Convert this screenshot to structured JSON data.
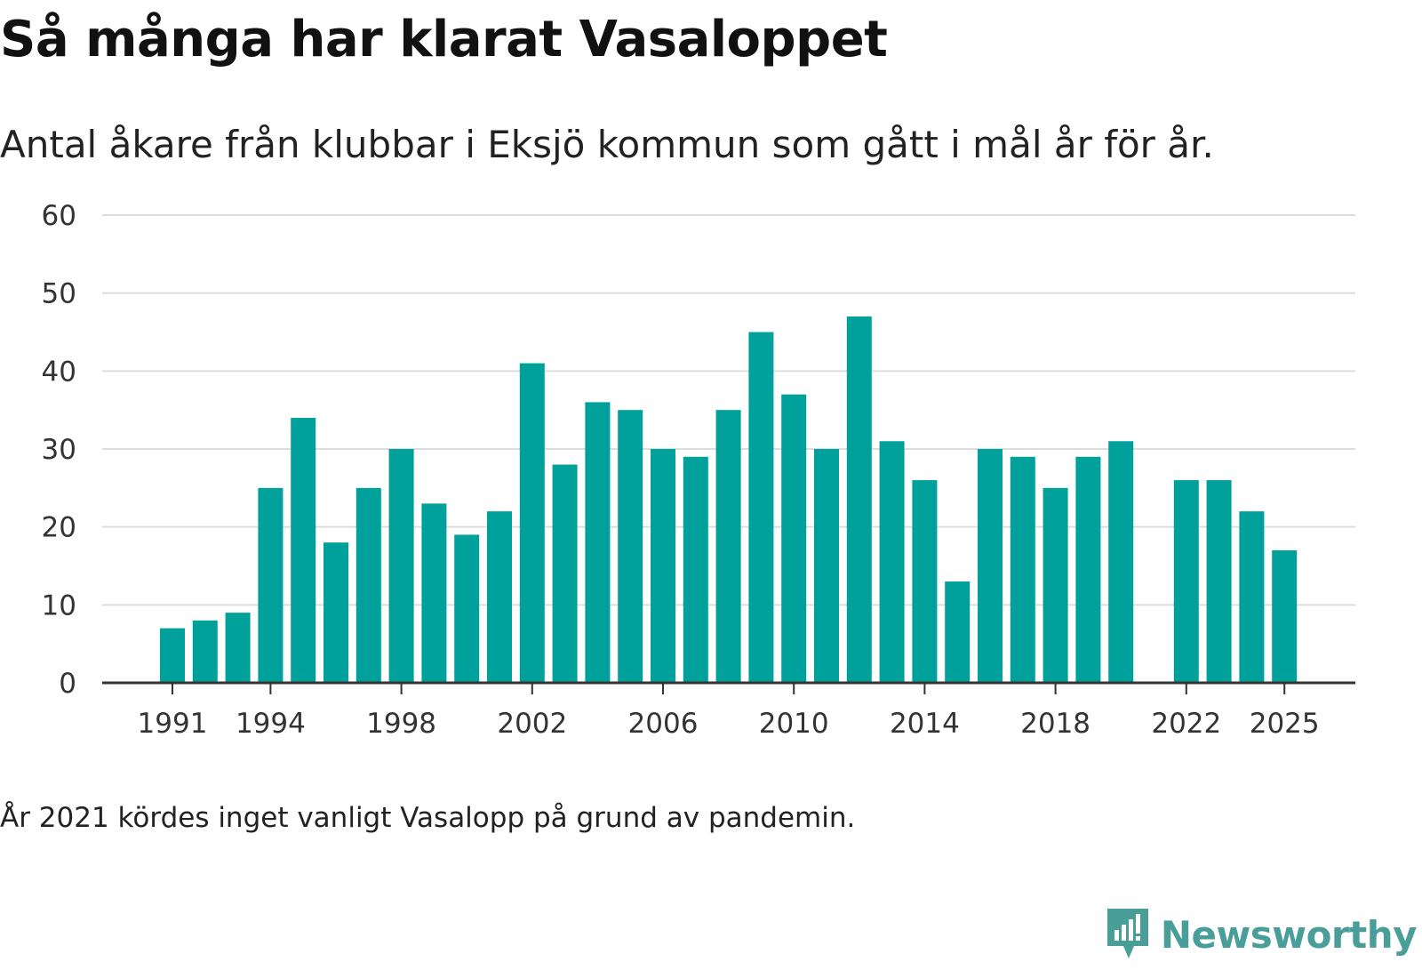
{
  "header": {
    "title": "Så många har klarat Vasaloppet",
    "subtitle": "Antal åkare från klubbar i Eksjö kommun som gått i mål år för år."
  },
  "footer": {
    "note": "År 2021 kördes inget vanligt Vasalopp på grund av pandemin.",
    "brand": "Newsworthy",
    "brand_icon": "newsworthy-logo-icon"
  },
  "colors": {
    "bar": "#00a19a",
    "grid": "#dddddd",
    "axis": "#333333",
    "brand": "#4a9e9a"
  },
  "chart_data": {
    "type": "bar",
    "title": "Så många har klarat Vasaloppet",
    "subtitle": "Antal åkare från klubbar i Eksjö kommun som gått i mål år för år.",
    "xlabel": "",
    "ylabel": "",
    "ylim": [
      0,
      60
    ],
    "yticks": [
      0,
      10,
      20,
      30,
      40,
      50,
      60
    ],
    "xticks": [
      1991,
      1994,
      1998,
      2002,
      2006,
      2010,
      2014,
      2018,
      2022,
      2025
    ],
    "grid": true,
    "categories": [
      1991,
      1992,
      1993,
      1994,
      1995,
      1996,
      1997,
      1998,
      1999,
      2000,
      2001,
      2002,
      2003,
      2004,
      2005,
      2006,
      2007,
      2008,
      2009,
      2010,
      2011,
      2012,
      2013,
      2014,
      2015,
      2016,
      2017,
      2018,
      2019,
      2020,
      2021,
      2022,
      2023,
      2024,
      2025
    ],
    "values": [
      7,
      8,
      9,
      25,
      34,
      18,
      25,
      30,
      23,
      19,
      22,
      41,
      28,
      36,
      35,
      30,
      29,
      35,
      45,
      37,
      30,
      47,
      31,
      26,
      13,
      30,
      29,
      25,
      29,
      31,
      null,
      26,
      26,
      22,
      17
    ]
  }
}
